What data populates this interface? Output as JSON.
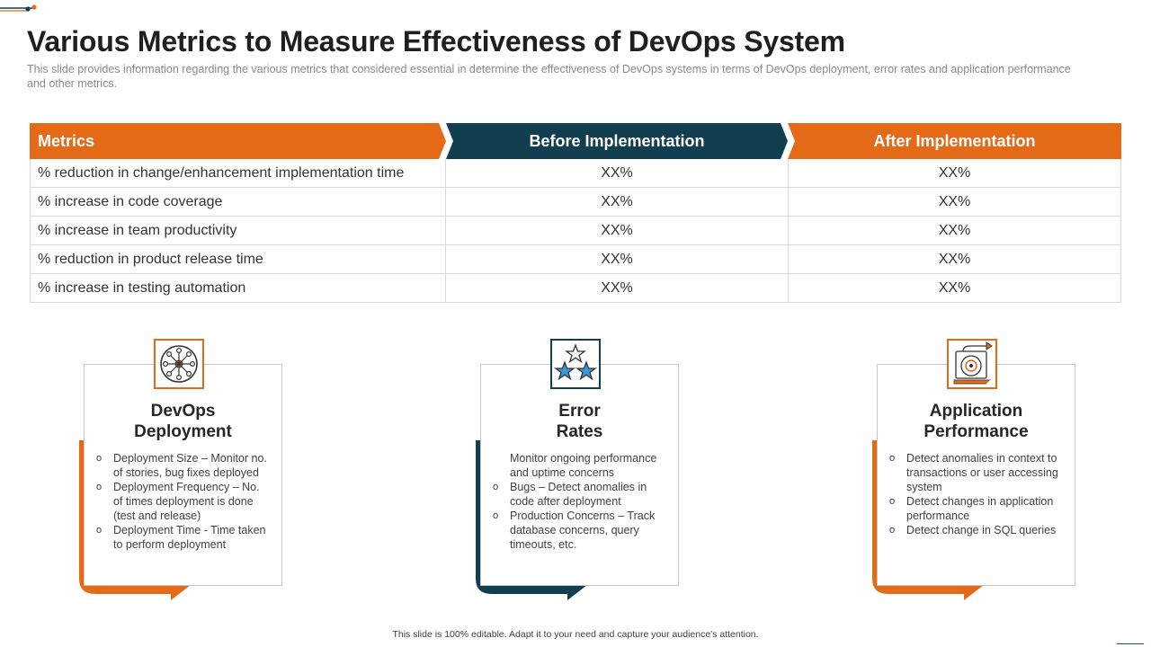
{
  "header": {
    "title": "Various Metrics to Measure Effectiveness of DevOps System",
    "subtitle": "This slide provides information regarding the various metrics that considered essential in determine the effectiveness of DevOps systems in terms of DevOps deployment, error rates and application performance and other metrics."
  },
  "colors": {
    "orange": "#E46A17",
    "teal": "#123F4F",
    "border": "#D9D9D9"
  },
  "table": {
    "headers": {
      "metrics": "Metrics",
      "before": "Before Implementation",
      "after": "After Implementation"
    },
    "rows": [
      {
        "metric": "% reduction in change/enhancement  implementation time",
        "before": "XX%",
        "after": "XX%"
      },
      {
        "metric": "% increase in code coverage",
        "before": "XX%",
        "after": "XX%"
      },
      {
        "metric": "% increase in team productivity",
        "before": "XX%",
        "after": "XX%"
      },
      {
        "metric": "% reduction in product release time",
        "before": "XX%",
        "after": "XX%"
      },
      {
        "metric": "% increase in testing automation",
        "before": "XX%",
        "after": "XX%"
      }
    ]
  },
  "cards": [
    {
      "icon": "network-hub-icon",
      "title_line1": "DevOps",
      "title_line2": "Deployment",
      "items": [
        "Deployment Size – Monitor no. of stories, bug fixes deployed",
        "Deployment Frequency – No. of times deployment is done (test and release)",
        "Deployment Time - Time taken to perform deployment"
      ]
    },
    {
      "icon": "stars-rating-icon",
      "title_line1": "Error",
      "title_line2": "Rates",
      "items": [
        "Monitor ongoing performance  and uptime concerns",
        "Bugs – Detect anomalies in code after deployment",
        "Production Concerns – Track database concerns, query timeouts, etc."
      ]
    },
    {
      "icon": "performance-disk-icon",
      "title_line1": "Application",
      "title_line2": "Performance",
      "items": [
        "Detect anomalies in context to transactions or user accessing system",
        "Detect changes in application performance",
        "Detect change in SQL queries"
      ]
    }
  ],
  "footer": {
    "text": "This slide is 100% editable.  Adapt it to your need and capture your audience's attention."
  }
}
